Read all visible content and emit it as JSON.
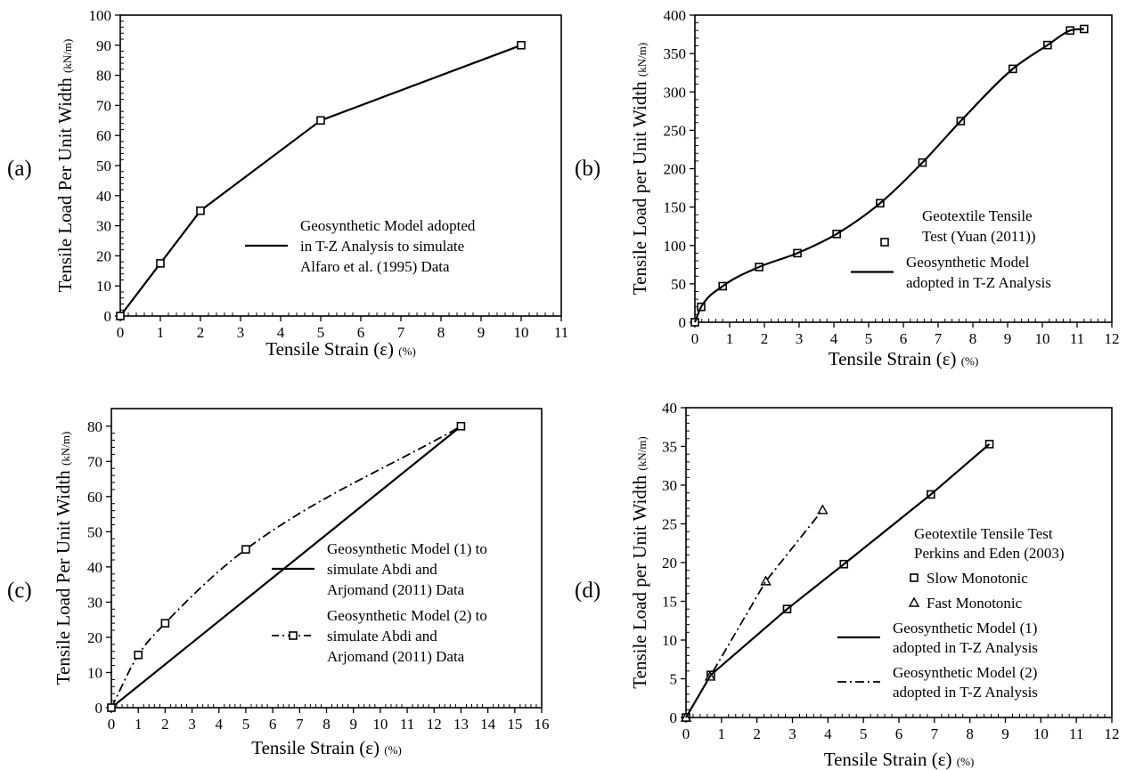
{
  "figure": {
    "panels": [
      {
        "tag": "(a)"
      },
      {
        "tag": "(b)"
      },
      {
        "tag": "(c)"
      },
      {
        "tag": "(d)"
      }
    ]
  },
  "chart_data": [
    {
      "type": "line",
      "panel": "(a)",
      "xlabel": "Tensile Strain (ε) (%)",
      "ylabel": "Tensile Load Per Unit Width (kN/m)",
      "xlim": [
        0,
        11
      ],
      "ylim": [
        0,
        100
      ],
      "xticks": [
        0,
        1,
        2,
        3,
        4,
        5,
        6,
        7,
        8,
        9,
        10,
        11
      ],
      "yticks": [
        0,
        10,
        20,
        30,
        40,
        50,
        60,
        70,
        80,
        90,
        100
      ],
      "grid": false,
      "legend_position": "right",
      "series": [
        {
          "name": "Geosynthetic Model adopted in T-Z Analysis to simulate Alfaro et al. (1995) Data",
          "style": "solid-line-square-markers",
          "x": [
            0,
            1,
            2,
            5,
            10
          ],
          "y": [
            0,
            17.5,
            35,
            65,
            90
          ]
        }
      ],
      "legend": [
        {
          "style": "solid",
          "lines": [
            "Geosynthetic Model adopted",
            "in T-Z Analysis to simulate",
            "Alfaro et al. (1995) Data"
          ]
        }
      ]
    },
    {
      "type": "line",
      "panel": "(b)",
      "xlabel": "Tensile Strain (ε) (%)",
      "ylabel": "Tensile Load per Unit Width (kN/m)",
      "xlim": [
        0,
        12
      ],
      "ylim": [
        0,
        400
      ],
      "xticks": [
        0,
        1,
        2,
        3,
        4,
        5,
        6,
        7,
        8,
        9,
        10,
        11,
        12
      ],
      "yticks": [
        0,
        50,
        100,
        150,
        200,
        250,
        300,
        350,
        400
      ],
      "grid": false,
      "legend_position": "bottom-right",
      "series": [
        {
          "name": "Geotextile Tensile Test (Yuan (2011))",
          "style": "square-markers",
          "x": [
            0,
            0.18,
            0.8,
            1.85,
            2.95,
            4.08,
            5.33,
            6.55,
            7.65,
            9.15,
            10.15,
            10.8,
            11.2
          ],
          "y": [
            0,
            20,
            47,
            72,
            90,
            115,
            155,
            208,
            262,
            330,
            361,
            380,
            382
          ]
        },
        {
          "name": "Geosynthetic Model adopted in T-Z Analysis",
          "style": "solid-line",
          "x": [
            0,
            0.18,
            0.8,
            1.85,
            2.95,
            4.08,
            5.33,
            6.55,
            7.65,
            9.15,
            10.15,
            10.8,
            11.2
          ],
          "y": [
            0,
            20,
            47,
            72,
            90,
            115,
            155,
            208,
            262,
            330,
            361,
            380,
            382
          ]
        }
      ],
      "legend": [
        {
          "style": "marker",
          "lines": [
            "Geotextile Tensile",
            "Test (Yuan (2011))"
          ]
        },
        {
          "style": "solid",
          "lines": [
            "Geosynthetic Model",
            "adopted in T-Z Analysis"
          ]
        }
      ]
    },
    {
      "type": "line",
      "panel": "(c)",
      "xlabel": "Tensile Strain (ε) (%)",
      "ylabel": "Tensile Load Per Unit Width (kN/m)",
      "xlim": [
        0,
        16
      ],
      "ylim": [
        0,
        85
      ],
      "xticks": [
        0,
        1,
        2,
        3,
        4,
        5,
        6,
        7,
        8,
        9,
        10,
        11,
        12,
        13,
        14,
        15,
        16
      ],
      "yticks": [
        0,
        10,
        20,
        30,
        40,
        50,
        60,
        70,
        80
      ],
      "grid": false,
      "legend_position": "bottom-right",
      "series": [
        {
          "name": "Geosynthetic Model (1) to simulate Abdi and Arjomand (2011) Data",
          "style": "solid-line",
          "x": [
            0,
            13
          ],
          "y": [
            0,
            80
          ]
        },
        {
          "name": "Geosynthetic Model (2) to simulate Abdi and Arjomand (2011) Data",
          "style": "dashdot-line-square-markers",
          "x": [
            0,
            1,
            2,
            5,
            13
          ],
          "y": [
            0,
            15,
            24,
            45,
            80
          ]
        }
      ],
      "legend": [
        {
          "style": "solid",
          "lines": [
            "Geosynthetic Model (1) to",
            "simulate Abdi and",
            "Arjomand (2011) Data"
          ]
        },
        {
          "style": "dashdot-marker",
          "lines": [
            "Geosynthetic Model (2) to",
            "simulate Abdi and",
            "Arjomand (2011) Data"
          ]
        }
      ]
    },
    {
      "type": "line",
      "panel": "(d)",
      "xlabel": "Tensile Strain (ε) (%)",
      "ylabel": "Tensile Load per Unit Width (kN/m)",
      "xlim": [
        0,
        12
      ],
      "ylim": [
        0,
        40
      ],
      "xticks": [
        0,
        1,
        2,
        3,
        4,
        5,
        6,
        7,
        8,
        9,
        10,
        11,
        12
      ],
      "yticks": [
        0,
        5,
        10,
        15,
        20,
        25,
        30,
        35,
        40
      ],
      "grid": false,
      "legend_position": "right",
      "series": [
        {
          "name": "Slow Monotonic",
          "style": "square-markers",
          "x": [
            0,
            0.7,
            2.85,
            4.45,
            6.9,
            8.55
          ],
          "y": [
            0,
            5.5,
            14,
            19.8,
            28.8,
            35.3
          ]
        },
        {
          "name": "Fast Monotonic",
          "style": "triangle-markers",
          "x": [
            0,
            0.68,
            2.25,
            3.85
          ],
          "y": [
            0,
            5.3,
            17.6,
            26.8
          ]
        },
        {
          "name": "Geosynthetic Model (1) adopted in T-Z Analysis",
          "style": "solid-line",
          "x": [
            0,
            0.7,
            2.85,
            4.45,
            6.9,
            8.55
          ],
          "y": [
            0,
            5.5,
            14,
            19.8,
            28.8,
            35.3
          ]
        },
        {
          "name": "Geosynthetic Model (2) adopted in T-Z Analysis",
          "style": "dashdot-line",
          "x": [
            0,
            0.68,
            2.25,
            3.85
          ],
          "y": [
            0,
            5.3,
            17.6,
            26.8
          ]
        }
      ],
      "legend": [
        {
          "style": "none",
          "lines": [
            "Geotextile Tensile Test",
            "Perkins and Eden (2003)"
          ]
        },
        {
          "style": "square",
          "lines": [
            "Slow Monotonic"
          ]
        },
        {
          "style": "triangle",
          "lines": [
            "Fast Monotonic"
          ]
        },
        {
          "style": "solid",
          "lines": [
            "Geosynthetic Model (1)",
            "adopted  in T-Z Analysis"
          ]
        },
        {
          "style": "dashdot",
          "lines": [
            "Geosynthetic Model (2)",
            "adopted  in T-Z Analysis"
          ]
        }
      ]
    }
  ]
}
